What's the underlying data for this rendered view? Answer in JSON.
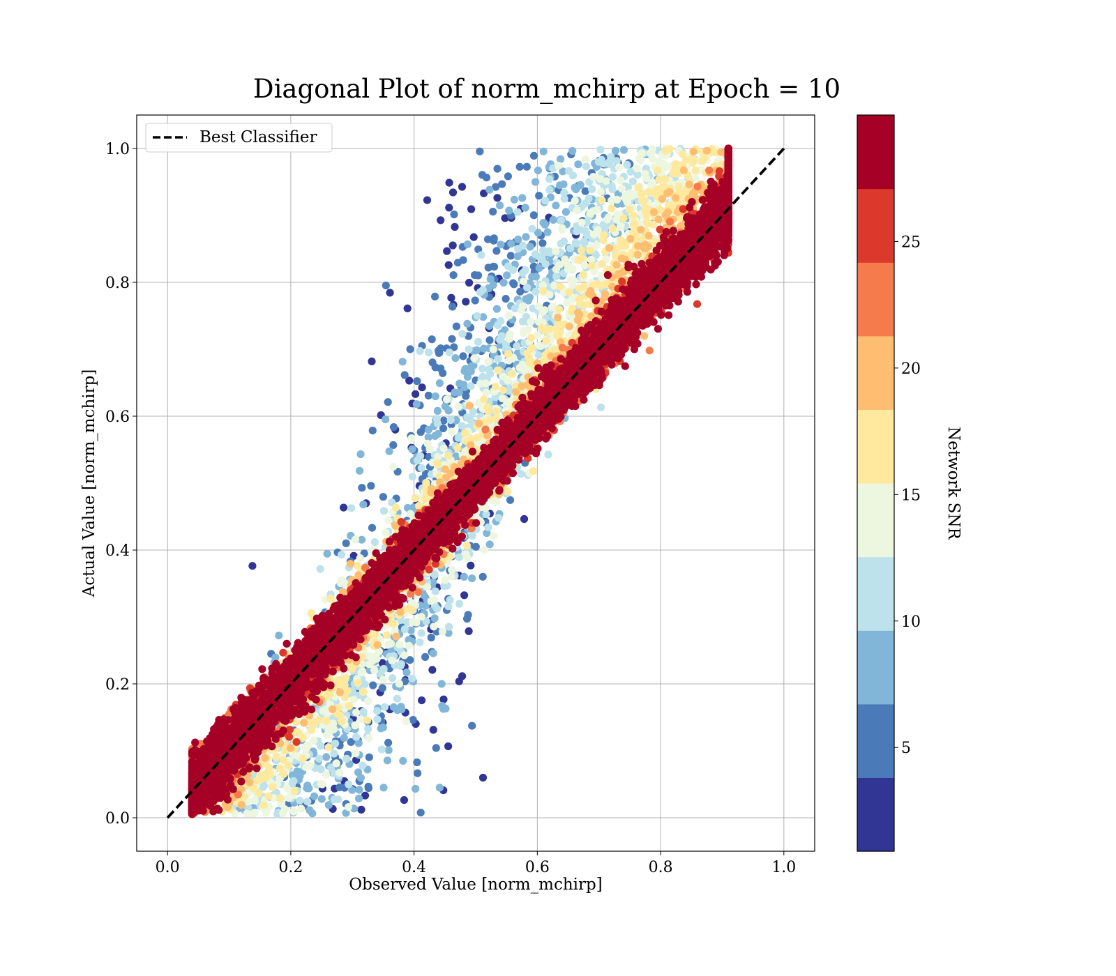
{
  "chart_data": {
    "type": "scatter",
    "title": "Diagonal Plot of norm_mchirp at Epoch = 10",
    "xlabel": "Observed Value [norm_mchirp]",
    "ylabel": "Actual Value [norm_mchirp]",
    "xlim": [
      -0.05,
      1.05
    ],
    "ylim": [
      -0.05,
      1.05
    ],
    "grid": true,
    "x_ticks": [
      "0.0",
      "0.2",
      "0.4",
      "0.6",
      "0.8",
      "1.0"
    ],
    "y_ticks": [
      "0.0",
      "0.2",
      "0.4",
      "0.6",
      "0.8",
      "1.0"
    ],
    "legend": {
      "position": "top-left",
      "entries": [
        "Best Classifier"
      ]
    },
    "reference_line": {
      "name": "Best Classifier",
      "x": [
        0,
        1
      ],
      "y": [
        0,
        1
      ],
      "style": "dashed",
      "color": "#000000"
    },
    "colorbar": {
      "label": "Network SNR",
      "range": [
        0.9,
        30.0
      ],
      "ticks": [
        "5",
        "10",
        "15",
        "20",
        "25"
      ],
      "tick_values": [
        5,
        10,
        15,
        20,
        25
      ],
      "bounds": [
        0.9,
        3.8,
        6.7,
        9.6,
        12.5,
        15.4,
        18.3,
        21.2,
        24.1,
        27.0,
        30.0
      ],
      "colors": [
        "#313695",
        "#4575b4",
        "#74add1",
        "#abd9e9",
        "#e0f3f8",
        "#ffffbf",
        "#fee090",
        "#fdae61",
        "#f46d43",
        "#d73027",
        "#a50026"
      ],
      "band_colors": [
        "#313695",
        "#4a7ab7",
        "#81b6d8",
        "#bde2ec",
        "#edf6df",
        "#fee99f",
        "#fdbe72",
        "#f57b4c",
        "#db392b",
        "#a50026"
      ]
    },
    "series_description": "Point cloud clustered along the diagonal; high-SNR (red) points tightly follow y = x, low-SNR (blue) points scatter toward actual ~0.8-1.0 at observed ~0.35-0.5 and actual ~0.0-0.2 at observed ~0.35-0.5."
  }
}
